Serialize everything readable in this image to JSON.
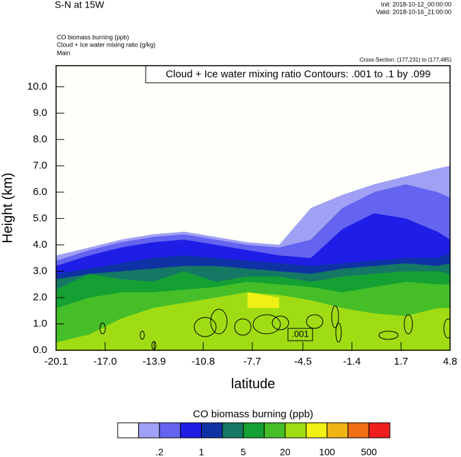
{
  "chart_data": {
    "type": "contour",
    "title": "S-N at 15W",
    "init": "Init: 2018-10-12_00:00:00",
    "valid": "Valid: 2018-10-16_21:00:00",
    "fields": [
      "CO biomass burning   (ppb)",
      "Cloud + Ice water mixing ratio   (g/kg)",
      "Main"
    ],
    "cross_section": "Cross-Section: (177,231) to (177,485)",
    "contour_note": "Cloud + Ice water mixing ratio Contours: .001 to .1 by .099",
    "contour_label": ".001",
    "xlabel": "latitude",
    "ylabel": "Height (km)",
    "xlim": [
      -20.1,
      4.8
    ],
    "xticks": [
      -20.1,
      {
        "value": -17,
        "label": "-17.0"
      },
      -13.9,
      -10.8,
      -7.7,
      -4.5,
      -1.4,
      1.7,
      4.8
    ],
    "ylim": [
      0,
      10.8
    ],
    "yticks": [
      {
        "value": 0,
        "label": "0.0"
      },
      {
        "value": 1,
        "label": "1.0"
      },
      {
        "value": 2,
        "label": "2.0"
      },
      {
        "value": 3,
        "label": "3.0"
      },
      {
        "value": 4,
        "label": "4.0"
      },
      {
        "value": 5,
        "label": "5.0"
      },
      {
        "value": 6,
        "label": "6.0"
      },
      {
        "value": 7,
        "label": "7.0"
      },
      {
        "value": 8,
        "label": "8.0"
      },
      {
        "value": 9,
        "label": "9.0"
      },
      {
        "value": 10,
        "label": "10.0"
      }
    ],
    "x": [
      -20.1,
      -18,
      -16,
      -14,
      -12,
      -10,
      -8,
      -6,
      -4,
      -2,
      0,
      2,
      4,
      4.8
    ],
    "bands": [
      {
        "color": "#a0a0f5",
        "top": [
          3.6,
          3.9,
          4.2,
          4.4,
          4.5,
          4.3,
          4.1,
          4.0,
          5.4,
          5.9,
          6.3,
          6.6,
          6.9,
          7.0
        ]
      },
      {
        "color": "#6464f0",
        "top": [
          3.4,
          3.8,
          4.1,
          4.3,
          4.4,
          4.2,
          4.0,
          3.9,
          4.2,
          5.4,
          6.0,
          6.3,
          6.0,
          5.8
        ]
      },
      {
        "color": "#1e1ee6",
        "top": [
          3.2,
          3.6,
          3.9,
          4.1,
          4.2,
          4.0,
          3.8,
          3.6,
          3.5,
          4.6,
          5.2,
          5.0,
          4.5,
          4.2
        ]
      },
      {
        "color": "#0f32a5",
        "top": [
          2.9,
          3.1,
          3.3,
          3.5,
          3.6,
          3.5,
          3.4,
          3.3,
          3.2,
          3.3,
          3.4,
          3.5,
          3.5,
          3.7
        ]
      },
      {
        "color": "#147864",
        "top": [
          2.7,
          2.9,
          3.0,
          3.1,
          3.2,
          3.2,
          3.1,
          3.0,
          2.9,
          3.1,
          3.2,
          3.3,
          3.2,
          3.3
        ]
      },
      {
        "color": "#14a032",
        "top": [
          2.3,
          2.9,
          2.7,
          2.6,
          3.0,
          2.6,
          2.8,
          2.8,
          2.6,
          2.8,
          2.9,
          3.0,
          3.0,
          2.9
        ]
      },
      {
        "color": "#46be28",
        "top": [
          1.6,
          2.0,
          2.2,
          2.2,
          2.3,
          2.4,
          2.6,
          2.5,
          2.4,
          2.2,
          2.4,
          2.6,
          2.5,
          2.5
        ]
      },
      {
        "color": "#a0dc14",
        "top": [
          0.3,
          0.6,
          1.2,
          1.6,
          1.8,
          2.0,
          2.2,
          2.1,
          1.9,
          1.6,
          1.4,
          1.3,
          1.6,
          1.6
        ]
      },
      {
        "color": "#f0f014",
        "bottom": [
          null,
          null,
          null,
          null,
          null,
          null,
          1.6,
          1.6,
          null,
          null,
          null,
          null,
          null,
          null
        ],
        "top": [
          null,
          null,
          null,
          null,
          null,
          null,
          2.2,
          2.0,
          null,
          null,
          null,
          null,
          null,
          null
        ]
      }
    ],
    "colorbar_title": "CO biomass burning  (ppb)",
    "colorbar_colors": [
      "#ffffff",
      "#a0a0f5",
      "#6464f0",
      "#1e1ee6",
      "#0f32a5",
      "#147864",
      "#14a032",
      "#46be28",
      "#a0dc14",
      "#f0f014",
      "#f0b414",
      "#f06e14",
      "#f01e1e"
    ],
    "colorbar_levels": [
      null,
      {
        "value": 0.2,
        "label": ".2"
      },
      null,
      1,
      null,
      5,
      null,
      20,
      null,
      100,
      null,
      500
    ]
  }
}
